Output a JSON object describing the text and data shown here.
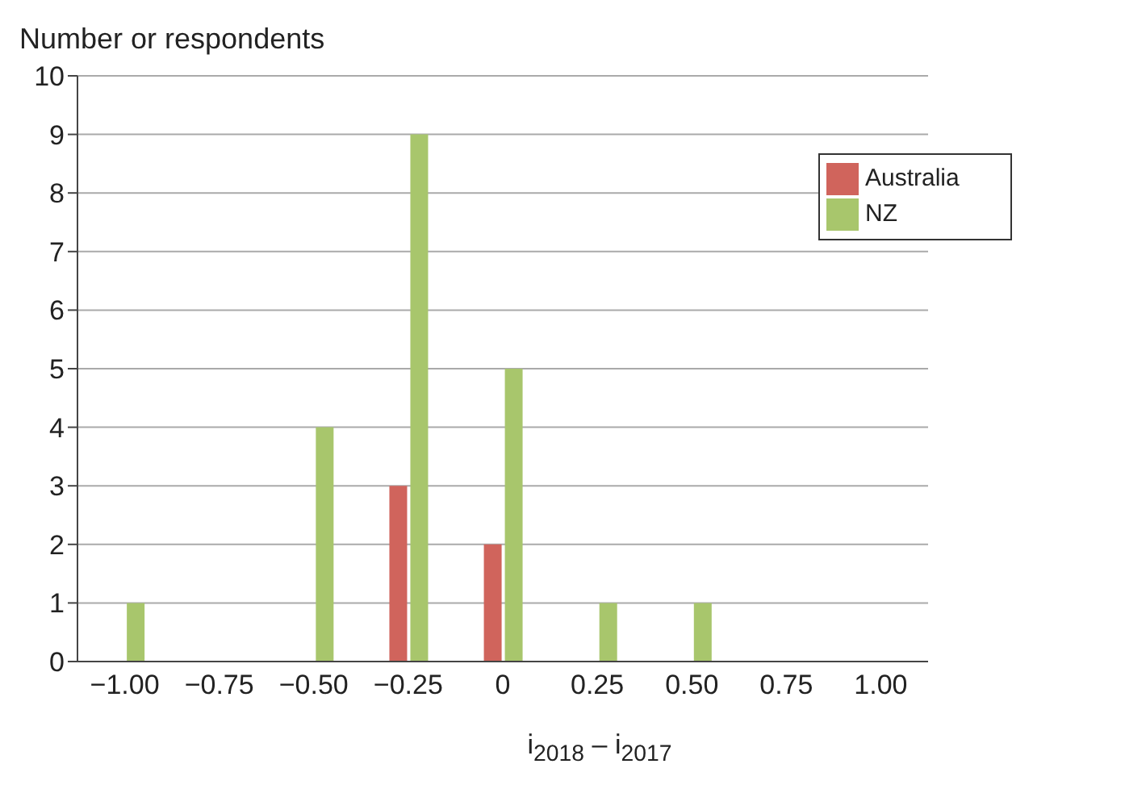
{
  "chart_data": {
    "type": "bar",
    "ylabel": "Number or respondents",
    "xlabel": "i$_{2018}$ – i$_{2017}$",
    "categories": [
      "−1.00",
      "−0.75",
      "−0.50",
      "−0.25",
      "0",
      "0.25",
      "0.50",
      "0.75",
      "1.00"
    ],
    "series": [
      {
        "name": "Australia",
        "color": "#d0645c",
        "values": [
          0,
          0,
          0,
          3,
          2,
          0,
          0,
          0,
          0
        ]
      },
      {
        "name": "NZ",
        "color": "#a8c66c",
        "values": [
          1,
          0,
          4,
          9,
          5,
          1,
          1,
          0,
          0
        ]
      }
    ],
    "ylim": [
      0,
      10
    ],
    "yticks": [
      0,
      1,
      2,
      3,
      4,
      5,
      6,
      7,
      8,
      9,
      10
    ],
    "grid": "y",
    "legend": "top right"
  }
}
